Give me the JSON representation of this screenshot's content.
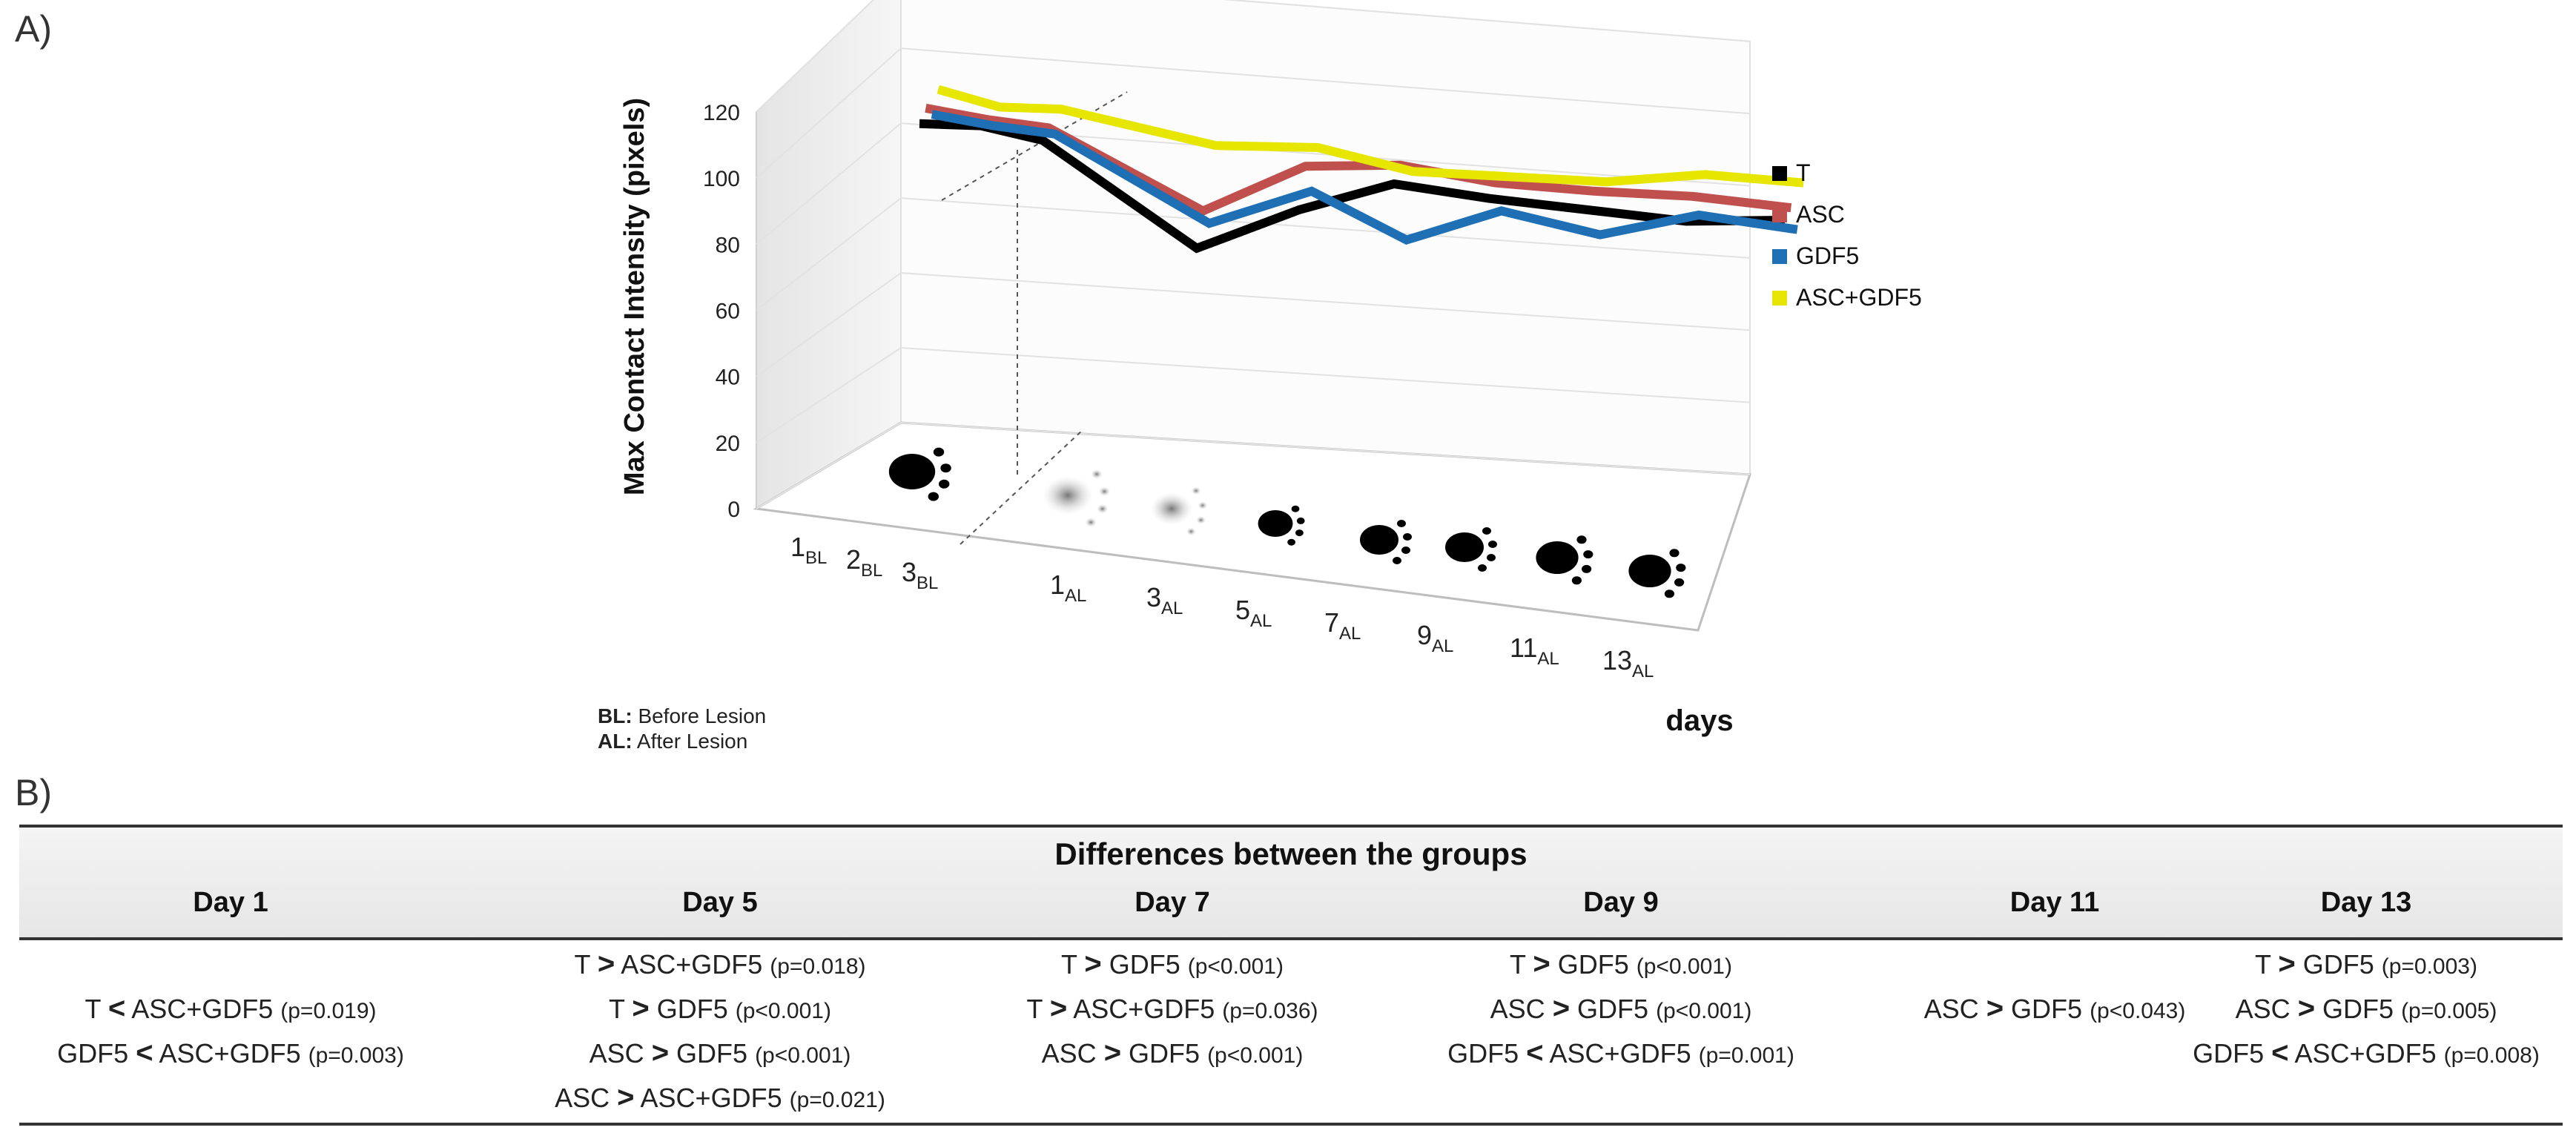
{
  "panels": {
    "a": "A)",
    "b": "B)"
  },
  "chart_data": {
    "type": "line",
    "title": "",
    "ylabel": "Max Contact Intensity (pixels)",
    "xlabel": "days",
    "ylim": [
      0,
      120
    ],
    "yticks": [
      0,
      20,
      40,
      60,
      80,
      100,
      120
    ],
    "categories": [
      {
        "num": "1",
        "sub": "BL"
      },
      {
        "num": "2",
        "sub": "BL"
      },
      {
        "num": "3",
        "sub": "BL"
      },
      {
        "num": "1",
        "sub": "AL"
      },
      {
        "num": "3",
        "sub": "AL"
      },
      {
        "num": "5",
        "sub": "AL"
      },
      {
        "num": "7",
        "sub": "AL"
      },
      {
        "num": "9",
        "sub": "AL"
      },
      {
        "num": "11",
        "sub": "AL"
      },
      {
        "num": "13",
        "sub": "AL"
      }
    ],
    "series": [
      {
        "name": "T",
        "color": "#000000",
        "values": [
          96,
          97,
          94,
          61,
          75,
          85,
          82,
          80,
          78,
          80
        ]
      },
      {
        "name": "ASC",
        "color": "#c0504d",
        "values": [
          100,
          98,
          97,
          72,
          88,
          90,
          86,
          85,
          85,
          83
        ]
      },
      {
        "name": "GDF5",
        "color": "#1f6fb5",
        "values": [
          97,
          95,
          94,
          67,
          79,
          65,
          76,
          70,
          78,
          75
        ]
      },
      {
        "name": "ASC+GDF5",
        "color": "#e6e600",
        "values": [
          104,
          100,
          101,
          91,
          92,
          86,
          86,
          86,
          90,
          89
        ]
      }
    ],
    "legend_position": "right",
    "grid": true
  },
  "notes": {
    "bl_key": "BL:",
    "bl_text": "Before Lesion",
    "al_key": "AL:",
    "al_text": "After Lesion"
  },
  "table": {
    "title": "Differences between the groups",
    "columns": [
      {
        "day": "Day 1",
        "rows": [
          {
            "a": "T",
            "op": "<",
            "b": "ASC+GDF5",
            "p": "(p=0.019)"
          },
          {
            "a": "GDF5",
            "op": "<",
            "b": "ASC+GDF5",
            "p": "(p=0.003)"
          }
        ]
      },
      {
        "day": "Day 5",
        "rows": [
          {
            "a": "T",
            "op": ">",
            "b": "ASC+GDF5",
            "p": "(p=0.018)"
          },
          {
            "a": "T",
            "op": ">",
            "b": "GDF5",
            "p": "(p<0.001)"
          },
          {
            "a": "ASC",
            "op": ">",
            "b": "GDF5",
            "p": "(p<0.001)"
          },
          {
            "a": "ASC",
            "op": ">",
            "b": "ASC+GDF5",
            "p": "(p=0.021)"
          }
        ]
      },
      {
        "day": "Day 7",
        "rows": [
          {
            "a": "T",
            "op": ">",
            "b": "GDF5",
            "p": "(p<0.001)"
          },
          {
            "a": "T",
            "op": ">",
            "b": "ASC+GDF5",
            "p": "(p=0.036)"
          },
          {
            "a": "ASC",
            "op": ">",
            "b": "GDF5",
            "p": "(p<0.001)"
          }
        ]
      },
      {
        "day": "Day 9",
        "rows": [
          {
            "a": "T",
            "op": ">",
            "b": "GDF5",
            "p": "(p<0.001)"
          },
          {
            "a": "ASC",
            "op": ">",
            "b": "GDF5",
            "p": "(p<0.001)"
          },
          {
            "a": "GDF5",
            "op": "<",
            "b": "ASC+GDF5",
            "p": "(p=0.001)"
          }
        ]
      },
      {
        "day": "Day 11",
        "rows": [
          {
            "a": "ASC",
            "op": ">",
            "b": "GDF5",
            "p": "(p<0.043)"
          }
        ]
      },
      {
        "day": "Day 13",
        "rows": [
          {
            "a": "T",
            "op": ">",
            "b": "GDF5",
            "p": "(p=0.003)"
          },
          {
            "a": "ASC",
            "op": ">",
            "b": "GDF5",
            "p": "(p=0.005)"
          },
          {
            "a": "GDF5",
            "op": "<",
            "b": "ASC+GDF5",
            "p": "(p=0.008)"
          }
        ]
      }
    ]
  }
}
